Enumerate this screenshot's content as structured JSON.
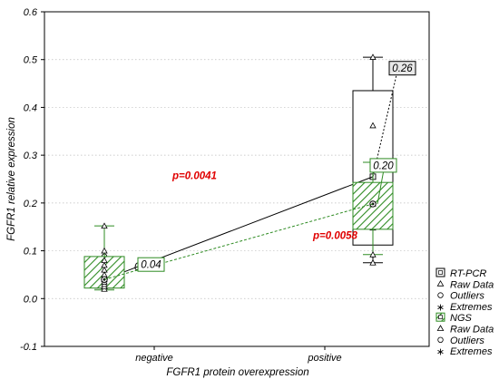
{
  "chart_data": {
    "type": "box",
    "xlabel": "FGFR1 protein overexpression",
    "ylabel": "FGFR1 relative expression",
    "categories": [
      "negative",
      "positive"
    ],
    "ylim": [
      -0.1,
      0.6
    ],
    "yticks": [
      "-0.1",
      "0.0",
      "0.1",
      "0.2",
      "0.3",
      "0.4",
      "0.5",
      "0.6"
    ],
    "grid": "horizontal-dotted",
    "legend_position": "right",
    "series": [
      {
        "name": "RT-PCR",
        "color": "#000000",
        "fill": "none",
        "groups": [
          {
            "category": "negative",
            "q1": 0.035,
            "q3": 0.05,
            "median": 0.04,
            "whisker_low": 0.022,
            "whisker_high": 0.068,
            "raw": [
              0.025,
              0.03,
              0.035,
              0.04,
              0.045,
              0.055,
              0.068
            ],
            "outliers": [
              0.088
            ],
            "label": "0.04"
          },
          {
            "category": "positive",
            "q1": 0.112,
            "q3": 0.435,
            "median": 0.255,
            "whisker_low": 0.075,
            "whisker_high": 0.505,
            "raw": [
              0.075,
              0.148,
              0.255,
              0.362,
              0.505
            ],
            "outliers": [],
            "label": "0.26"
          }
        ],
        "p_value": "p=0.0041"
      },
      {
        "name": "NGS",
        "color": "#2e8b22",
        "fill": "hatched",
        "groups": [
          {
            "category": "negative",
            "q1": 0.022,
            "q3": 0.088,
            "median": 0.04,
            "whisker_low": 0.018,
            "whisker_high": 0.152,
            "raw": [
              0.02,
              0.025,
              0.03,
              0.035,
              0.04,
              0.045,
              0.05,
              0.06,
              0.07,
              0.08,
              0.1,
              0.152
            ],
            "outliers": [],
            "label": "0.04"
          },
          {
            "category": "positive",
            "q1": 0.145,
            "q3": 0.243,
            "median": 0.198,
            "whisker_low": 0.092,
            "whisker_high": 0.285,
            "raw": [
              0.092,
              0.198,
              0.285
            ],
            "outliers": [],
            "label": "0.20"
          }
        ],
        "p_value": "p=0.0058"
      }
    ],
    "legend": {
      "groups": [
        {
          "title": "RT-PCR",
          "items": [
            "Raw Data",
            "Outliers",
            "Extremes"
          ]
        },
        {
          "title": "NGS",
          "items": [
            "Raw Data",
            "Outliers",
            "Extremes"
          ]
        }
      ]
    }
  }
}
